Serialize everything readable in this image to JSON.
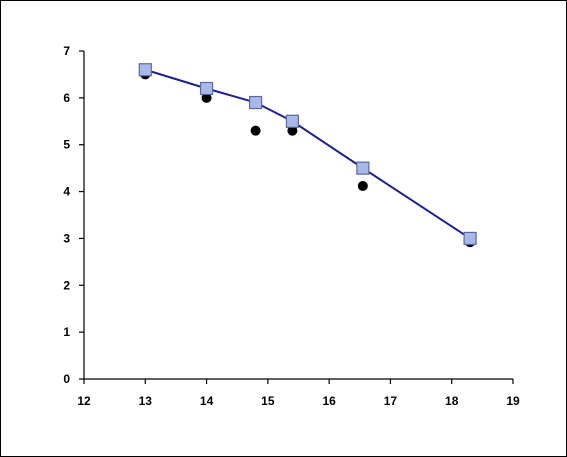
{
  "chart_data": {
    "type": "scatter",
    "title": "",
    "xlabel": "",
    "ylabel": "",
    "xlim": [
      12,
      19
    ],
    "ylim": [
      0,
      7
    ],
    "x_ticks": [
      "12",
      "13",
      "14",
      "15",
      "16",
      "17",
      "18",
      "19"
    ],
    "y_ticks": [
      "0",
      "1",
      "2",
      "3",
      "4",
      "5",
      "6",
      "7"
    ],
    "grid": false,
    "legend": "none",
    "series": [
      {
        "kind": "line-with-square-markers",
        "line_color": "#1f1f8f",
        "marker_fill": "#aab8e8",
        "marker_edge": "#5a6aa0",
        "x": [
          13.0,
          14.0,
          14.8,
          15.4,
          16.55,
          18.3
        ],
        "y": [
          6.6,
          6.2,
          5.9,
          5.5,
          4.5,
          3.0
        ]
      },
      {
        "kind": "circle-markers",
        "marker_fill": "#000000",
        "x": [
          13.0,
          14.0,
          14.8,
          15.4,
          16.55,
          18.3
        ],
        "y": [
          6.5,
          6.0,
          5.3,
          5.3,
          4.12,
          2.92
        ]
      }
    ]
  }
}
